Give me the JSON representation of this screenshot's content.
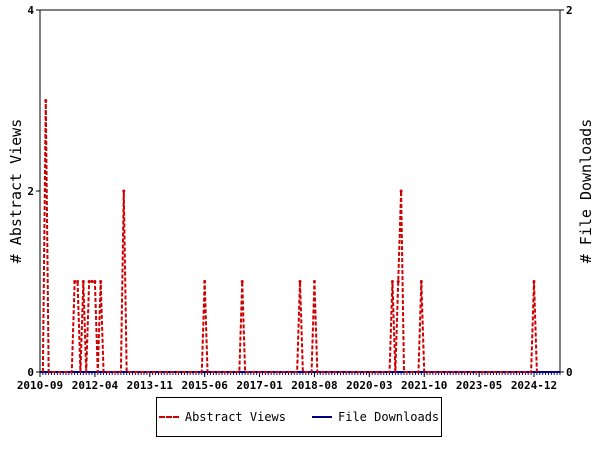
{
  "chart_data": {
    "type": "line",
    "title": "",
    "xlabel": "",
    "ylabel_left": "# Abstract Views",
    "ylabel_right": "# File Downloads",
    "x_range": [
      "2010-09",
      "2025-09"
    ],
    "x_ticks": [
      "2010-09",
      "2012-04",
      "2013-11",
      "2015-06",
      "2017-01",
      "2018-08",
      "2020-03",
      "2021-10",
      "2023-05",
      "2024-12"
    ],
    "y_left_range": [
      0,
      4
    ],
    "y_left_ticks": [
      "0",
      "2",
      "4"
    ],
    "y_right_range": [
      0,
      2
    ],
    "y_right_ticks": [
      "0",
      "2"
    ],
    "grid": false,
    "legend_position": "bottom",
    "series": [
      {
        "name": "Abstract Views",
        "axis": "left",
        "color": "#cc0000",
        "style": "dashed",
        "points": [
          [
            "2010-10",
            0
          ],
          [
            "2010-11",
            3
          ],
          [
            "2010-12",
            0
          ],
          [
            "2011-08",
            0
          ],
          [
            "2011-09",
            1
          ],
          [
            "2011-10",
            1
          ],
          [
            "2011-11",
            0
          ],
          [
            "2011-12",
            1
          ],
          [
            "2012-01",
            0
          ],
          [
            "2012-02",
            1
          ],
          [
            "2012-03",
            1
          ],
          [
            "2012-04",
            1
          ],
          [
            "2012-05",
            0
          ],
          [
            "2012-06",
            1
          ],
          [
            "2012-07",
            0
          ],
          [
            "2013-01",
            0
          ],
          [
            "2013-02",
            2
          ],
          [
            "2013-03",
            0
          ],
          [
            "2015-05",
            0
          ],
          [
            "2015-06",
            1
          ],
          [
            "2015-07",
            0
          ],
          [
            "2016-06",
            0
          ],
          [
            "2016-07",
            1
          ],
          [
            "2016-08",
            0
          ],
          [
            "2018-02",
            0
          ],
          [
            "2018-03",
            1
          ],
          [
            "2018-04",
            0
          ],
          [
            "2018-07",
            0
          ],
          [
            "2018-08",
            1
          ],
          [
            "2018-09",
            0
          ],
          [
            "2020-10",
            0
          ],
          [
            "2020-11",
            1
          ],
          [
            "2020-12",
            0
          ],
          [
            "2021-01",
            1
          ],
          [
            "2021-02",
            2
          ],
          [
            "2021-03",
            0
          ],
          [
            "2021-08",
            0
          ],
          [
            "2021-09",
            1
          ],
          [
            "2021-10",
            0
          ],
          [
            "2024-11",
            0
          ],
          [
            "2024-12",
            1
          ],
          [
            "2025-01",
            0
          ]
        ]
      },
      {
        "name": "File Downloads",
        "axis": "right",
        "color": "#000080",
        "style": "solid",
        "points": [
          [
            "2010-09",
            0
          ],
          [
            "2025-09",
            0
          ]
        ]
      }
    ]
  }
}
